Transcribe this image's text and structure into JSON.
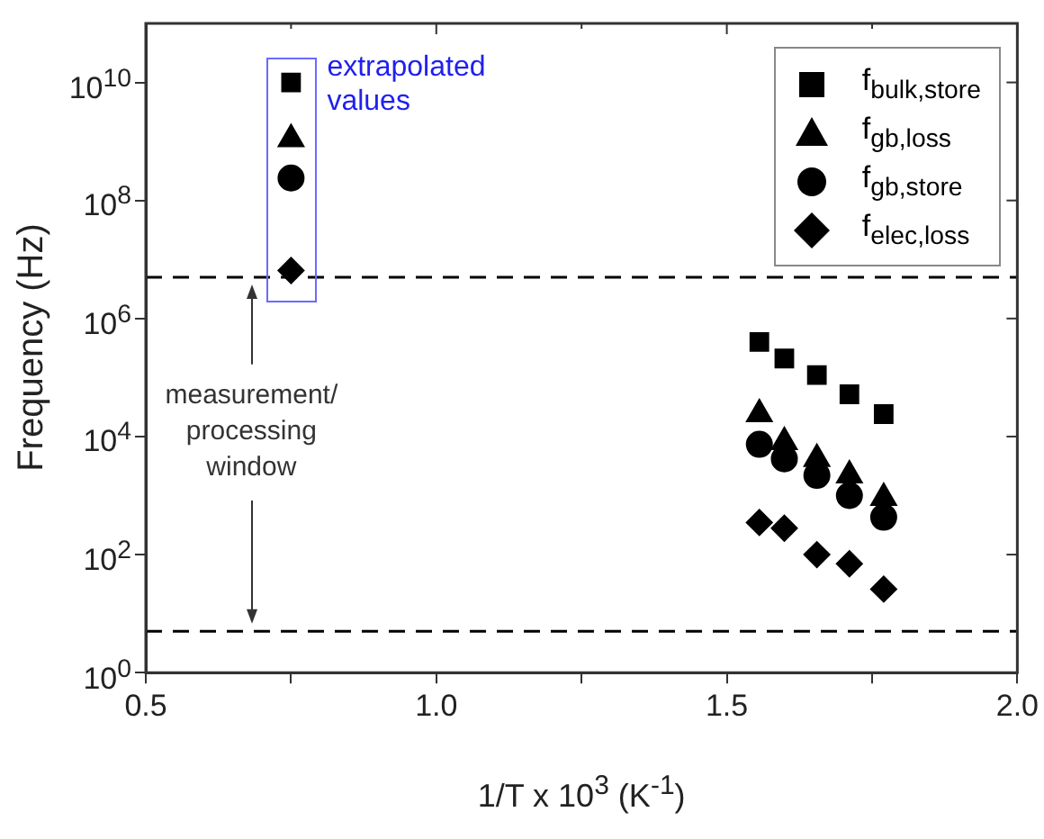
{
  "chart_data": {
    "type": "scatter",
    "xlabel": "1/T x 10$^{3}$ (K$^{-1}$)",
    "ylabel": "Frequency (Hz)",
    "log": "y",
    "xlim": [
      0.5,
      2.0
    ],
    "ylim": [
      1,
      100000000000
    ],
    "xticks": [
      0.5,
      {
        "value": 0.75,
        "label": null
      },
      {
        "value": 1,
        "label": "1.0"
      },
      {
        "value": 1.25,
        "label": null
      },
      1.5,
      {
        "value": 1.75,
        "label": null
      },
      {
        "value": 2,
        "label": "2.0"
      }
    ],
    "yticks": [
      {
        "value": 1,
        "label": "10$^{0}$"
      },
      {
        "value": 100,
        "label": "10$^{2}$"
      },
      {
        "value": 10000,
        "label": "10$^{4}$"
      },
      {
        "value": 1000000,
        "label": "10$^{6}$"
      },
      {
        "value": 100000000,
        "label": "10$^{8}$"
      },
      {
        "value": 10000000000,
        "label": "10$^{10}$"
      }
    ],
    "grid": false,
    "legend": "top right",
    "series": [
      {
        "name": "f$_{bulk,store}$",
        "color": "#000000",
        "marker": "square",
        "x": [
          0.75,
          1.556,
          1.599,
          1.655,
          1.711,
          1.77
        ],
        "values": [
          10000000000,
          400000,
          210000,
          110000,
          52000,
          24000
        ]
      },
      {
        "name": "f$_{gb,loss}$",
        "color": "#000000",
        "marker": "triangle",
        "x": [
          0.75,
          1.556,
          1.599,
          1.655,
          1.711,
          1.77
        ],
        "values": [
          1100000000,
          24000,
          8100,
          4200,
          2200,
          920
        ]
      },
      {
        "name": "f$_{gb,store}$",
        "color": "#000000",
        "marker": "circle",
        "x": [
          0.75,
          1.556,
          1.599,
          1.655,
          1.711,
          1.77
        ],
        "values": [
          240000000,
          7400,
          4200,
          2200,
          1000,
          430
        ]
      },
      {
        "name": "f$_{elec,loss}$",
        "color": "#000000",
        "marker": "diamond",
        "x": [
          0.75,
          1.556,
          1.599,
          1.655,
          1.711,
          1.77
        ],
        "values": [
          6500000,
          350,
          280,
          100,
          70,
          26
        ]
      }
    ],
    "ref_lines": [
      {
        "axis": "y",
        "value": 5000000,
        "color": "#000000",
        "line_style": "dashed"
      },
      {
        "axis": "y",
        "value": 5,
        "color": "#000000",
        "line_style": "dashed"
      }
    ],
    "annotations": [
      "extrapolated values",
      "measurement/ processing window"
    ]
  }
}
